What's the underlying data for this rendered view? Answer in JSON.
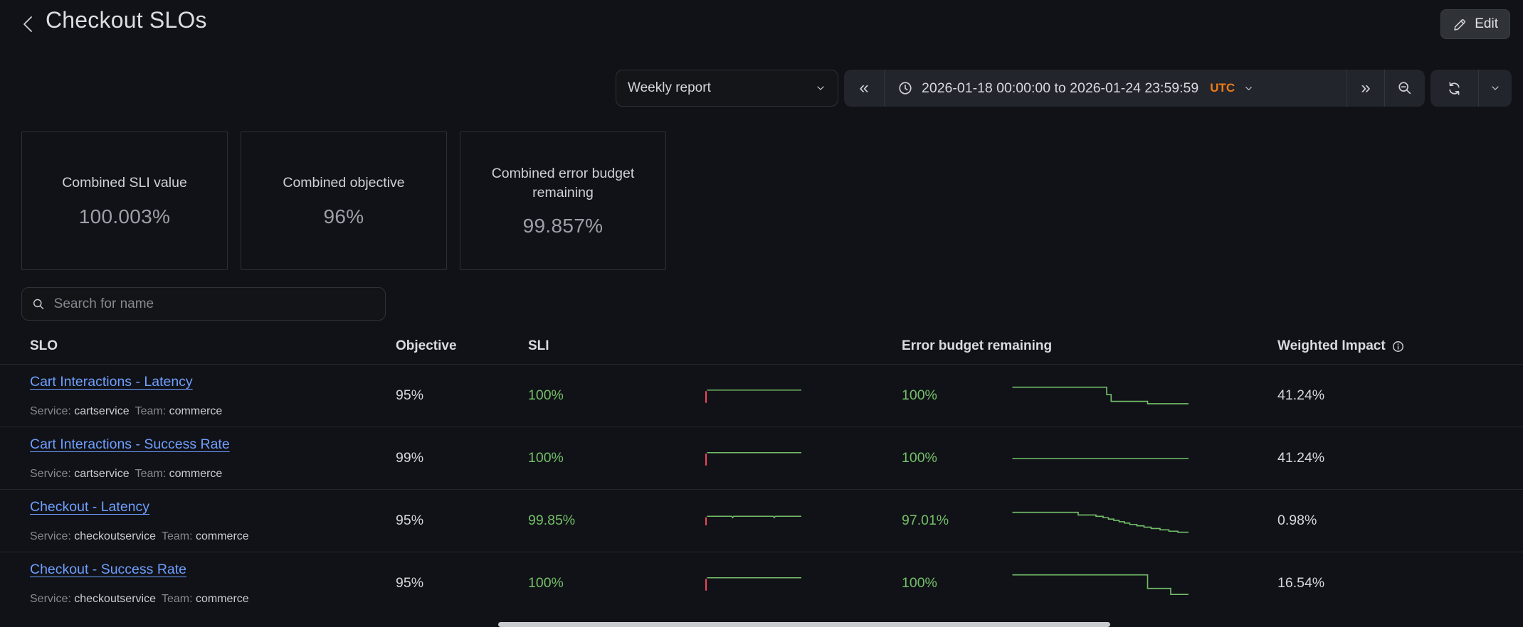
{
  "header": {
    "title": "Checkout SLOs",
    "edit_label": "Edit"
  },
  "toolbar": {
    "report_select_value": "Weekly report",
    "time_range": "2026-01-18 00:00:00 to 2026-01-24 23:59:59",
    "timezone": "UTC"
  },
  "icons": {
    "back": "‹",
    "previous": "«",
    "next": "»",
    "edit": "pencil-svg",
    "clock": "clock-svg",
    "select_caret": "chevron-down-svg",
    "timezone_caret": "chevron-down-svg",
    "refresh_caret": "chevron-down-svg",
    "zoom_out": "magnifier-minus-svg",
    "refresh": "sync-svg",
    "search": "magnifier-svg",
    "info": "info-circle-svg"
  },
  "stats": [
    {
      "title": "Combined SLI value",
      "value": "100.003%"
    },
    {
      "title": "Combined objective",
      "value": "96%"
    },
    {
      "title": "Combined error budget remaining",
      "value": "99.857%"
    }
  ],
  "search": {
    "placeholder": "Search for name"
  },
  "table": {
    "columns": {
      "slo": "SLO",
      "objective": "Objective",
      "sli": "SLI",
      "error_budget": "Error budget remaining",
      "weighted_impact": "Weighted Impact"
    },
    "rows": [
      {
        "name": "Cart Interactions - Latency",
        "service_label": "Service:",
        "service": "cartservice",
        "team_label": "Team:",
        "team": "commerce",
        "objective": "95%",
        "sli": "100%",
        "error_budget": "100%",
        "weighted_impact": "41.24%",
        "sli_spark": [
          {
            "color": "#f2495c",
            "width": 2,
            "points": [
              [
                1.5,
                33
              ],
              [
                1.5,
                11
              ]
            ]
          },
          {
            "color": "#73bf69",
            "width": 1.6,
            "points": [
              [
                2.5,
                9
              ],
              [
                100,
                9
              ]
            ]
          }
        ],
        "eb_spark": [
          {
            "color": "#73bf69",
            "width": 1.6,
            "points": [
              [
                1,
                7
              ],
              [
                54,
                7
              ],
              [
                54,
                18
              ],
              [
                56.5,
                18
              ],
              [
                56.5,
                28
              ],
              [
                77,
                28
              ],
              [
                77,
                31.5
              ],
              [
                100,
                31.5
              ]
            ]
          }
        ]
      },
      {
        "name": "Cart Interactions - Success Rate",
        "service_label": "Service:",
        "service": "cartservice",
        "team_label": "Team:",
        "team": "commerce",
        "objective": "99%",
        "sli": "100%",
        "error_budget": "100%",
        "weighted_impact": "41.24%",
        "sli_spark": [
          {
            "color": "#f2495c",
            "width": 2,
            "points": [
              [
                1.5,
                33
              ],
              [
                1.5,
                11
              ]
            ]
          },
          {
            "color": "#73bf69",
            "width": 1.6,
            "points": [
              [
                2.5,
                9
              ],
              [
                100,
                9
              ]
            ]
          }
        ],
        "eb_spark": [
          {
            "color": "#73bf69",
            "width": 1.6,
            "points": [
              [
                1,
                20
              ],
              [
                100,
                20
              ]
            ]
          }
        ]
      },
      {
        "name": "Checkout - Latency",
        "service_label": "Service:",
        "service": "checkoutservice",
        "team_label": "Team:",
        "team": "commerce",
        "objective": "95%",
        "sli": "99.85%",
        "error_budget": "97.01%",
        "weighted_impact": "0.98%",
        "sli_spark": [
          {
            "color": "#f2495c",
            "width": 2,
            "points": [
              [
                1.5,
                28
              ],
              [
                1.5,
                13
              ]
            ]
          },
          {
            "color": "#73bf69",
            "width": 1.6,
            "points": [
              [
                2.5,
                11
              ],
              [
                28,
                11
              ],
              [
                29,
                13.5
              ],
              [
                30,
                11
              ],
              [
                71,
                11
              ],
              [
                72,
                13.5
              ],
              [
                73,
                11
              ],
              [
                100,
                11
              ]
            ]
          }
        ],
        "eb_spark": [
          {
            "color": "#73bf69",
            "width": 1.6,
            "points": [
              [
                1,
                7
              ],
              [
                38,
                7
              ],
              [
                38,
                11
              ],
              [
                48,
                11
              ],
              [
                48,
                13
              ],
              [
                52,
                13
              ],
              [
                52,
                15
              ],
              [
                55,
                15
              ],
              [
                55,
                17
              ],
              [
                58,
                17
              ],
              [
                58,
                19
              ],
              [
                61,
                19
              ],
              [
                61,
                21
              ],
              [
                64,
                21
              ],
              [
                64,
                23
              ],
              [
                67,
                23
              ],
              [
                67,
                25
              ],
              [
                71,
                25
              ],
              [
                71,
                27
              ],
              [
                75,
                27
              ],
              [
                75,
                29
              ],
              [
                79,
                29
              ],
              [
                79,
                31
              ],
              [
                84,
                31
              ],
              [
                84,
                33
              ],
              [
                89,
                33
              ],
              [
                89,
                35
              ],
              [
                94,
                35
              ],
              [
                94,
                36.5
              ],
              [
                100,
                36.5
              ]
            ]
          }
        ]
      },
      {
        "name": "Checkout - Success Rate",
        "service_label": "Service:",
        "service": "checkoutservice",
        "team_label": "Team:",
        "team": "commerce",
        "objective": "95%",
        "sli": "100%",
        "error_budget": "100%",
        "weighted_impact": "16.54%",
        "sli_spark": [
          {
            "color": "#f2495c",
            "width": 2,
            "points": [
              [
                1.5,
                33
              ],
              [
                1.5,
                11
              ]
            ]
          },
          {
            "color": "#73bf69",
            "width": 1.6,
            "points": [
              [
                2.5,
                9
              ],
              [
                100,
                9
              ]
            ]
          }
        ],
        "eb_spark": [
          {
            "color": "#73bf69",
            "width": 1.6,
            "points": [
              [
                1,
                7
              ],
              [
                77,
                7
              ],
              [
                77,
                27
              ],
              [
                90,
                27
              ],
              [
                90,
                36
              ],
              [
                100,
                36
              ]
            ]
          }
        ]
      }
    ]
  },
  "colors": {
    "background": "#111217",
    "green": "#73bf69",
    "red": "#f2495c",
    "link_blue": "#6e9fff",
    "timezone_orange": "#ee7b19"
  }
}
